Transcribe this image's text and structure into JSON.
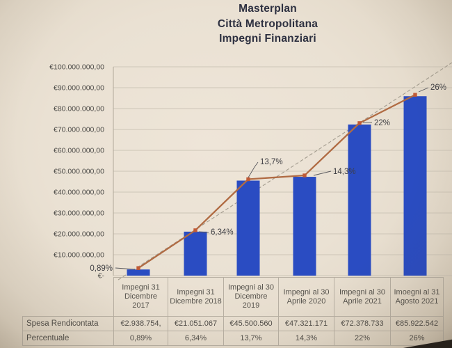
{
  "title": {
    "lines": [
      "Masterplan",
      "Città Metropolitana",
      "Impegni Finanziari"
    ]
  },
  "chart_data": {
    "type": "bar",
    "title": "Masterplan Città Metropolitana Impegni Finanziari",
    "categories": [
      "Impegni 31 Dicembre 2017",
      "Impegni 31 Dicembre 2018",
      "Impegni al 30 Dicembre 2019",
      "Impegni al 30 Aprile 2020",
      "Impegni al 30 Aprile 2021",
      "Imoegni al 31 Agosto 2021"
    ],
    "series": [
      {
        "name": "Spesa Rendicontata",
        "type": "bar",
        "values": [
          2938754,
          21051067,
          45500560,
          47321171,
          72378733,
          85922542
        ]
      },
      {
        "name": "Percentuale",
        "type": "line",
        "point_labels": [
          "0,89%",
          "6,34%",
          "13,7%",
          "14,3%",
          "22%",
          "26%"
        ]
      }
    ],
    "y_axis": {
      "min": 0,
      "max": 100000000,
      "tick_labels": [
        "€100.000.000,00",
        "€90.000.000,00",
        "€80.000.000,00",
        "€70.000.000,00",
        "€60.000.000,00",
        "€50.000.000,00",
        "€40.000.000,00",
        "€30.000.000,00",
        "€20.000.000,00",
        "€10.000.000,00",
        "€-"
      ]
    },
    "trendline": true,
    "legend_position": "none",
    "grid": true,
    "colors": {
      "bar": "#2a4cc2",
      "line": "#b06b43",
      "marker": "#c05a36",
      "trend": "#a39c8f",
      "gridline": "#cdc5b7",
      "axis": "#b0a899"
    }
  },
  "table": {
    "rows": [
      {
        "label": "Spesa Rendicontata",
        "values": [
          "€2.938.754,",
          "€21.051.067",
          "€45.500.560",
          "€47.321.171",
          "€72.378.733",
          "€85.922.542"
        ]
      },
      {
        "label": "Percentuale",
        "values": [
          "0,89%",
          "6,34%",
          "13,7%",
          "14,3%",
          "22%",
          "26%"
        ]
      }
    ]
  }
}
